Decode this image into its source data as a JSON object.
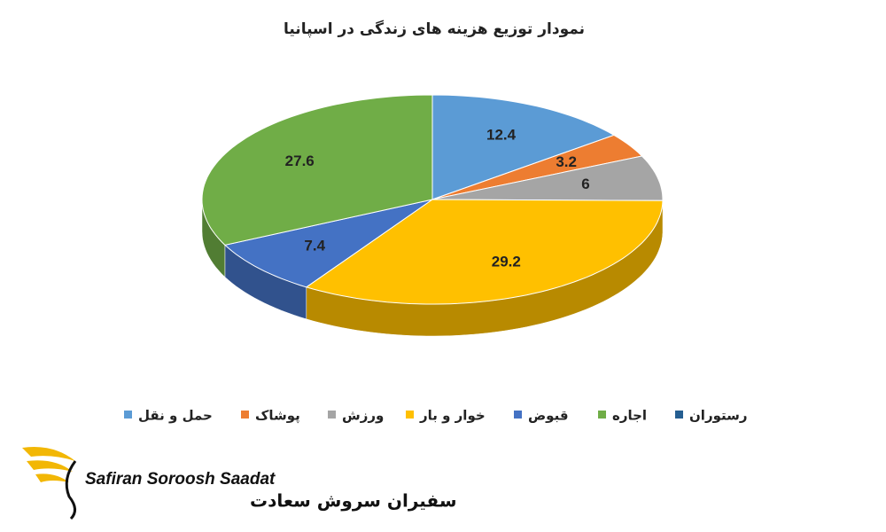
{
  "chart_data": {
    "type": "pie",
    "title": "نمودار توزیع هزینه های زندگی در اسپانیا",
    "categories": [
      "حمل و نقل",
      "پوشاک",
      "ورزش",
      "خوار و بار",
      "قبوض",
      "اجاره",
      "رستوران"
    ],
    "values": [
      12.4,
      3.2,
      6,
      29.2,
      7.4,
      27.6,
      null
    ],
    "colors": [
      "#5b9bd5",
      "#ed7d31",
      "#a5a5a5",
      "#ffc000",
      "#4472c4",
      "#70ad47",
      "#255e91"
    ],
    "legend": "bottom"
  },
  "logo": {
    "latin": "Safiran Soroosh Saadat",
    "persian": "سفیران سروش سعادت"
  }
}
